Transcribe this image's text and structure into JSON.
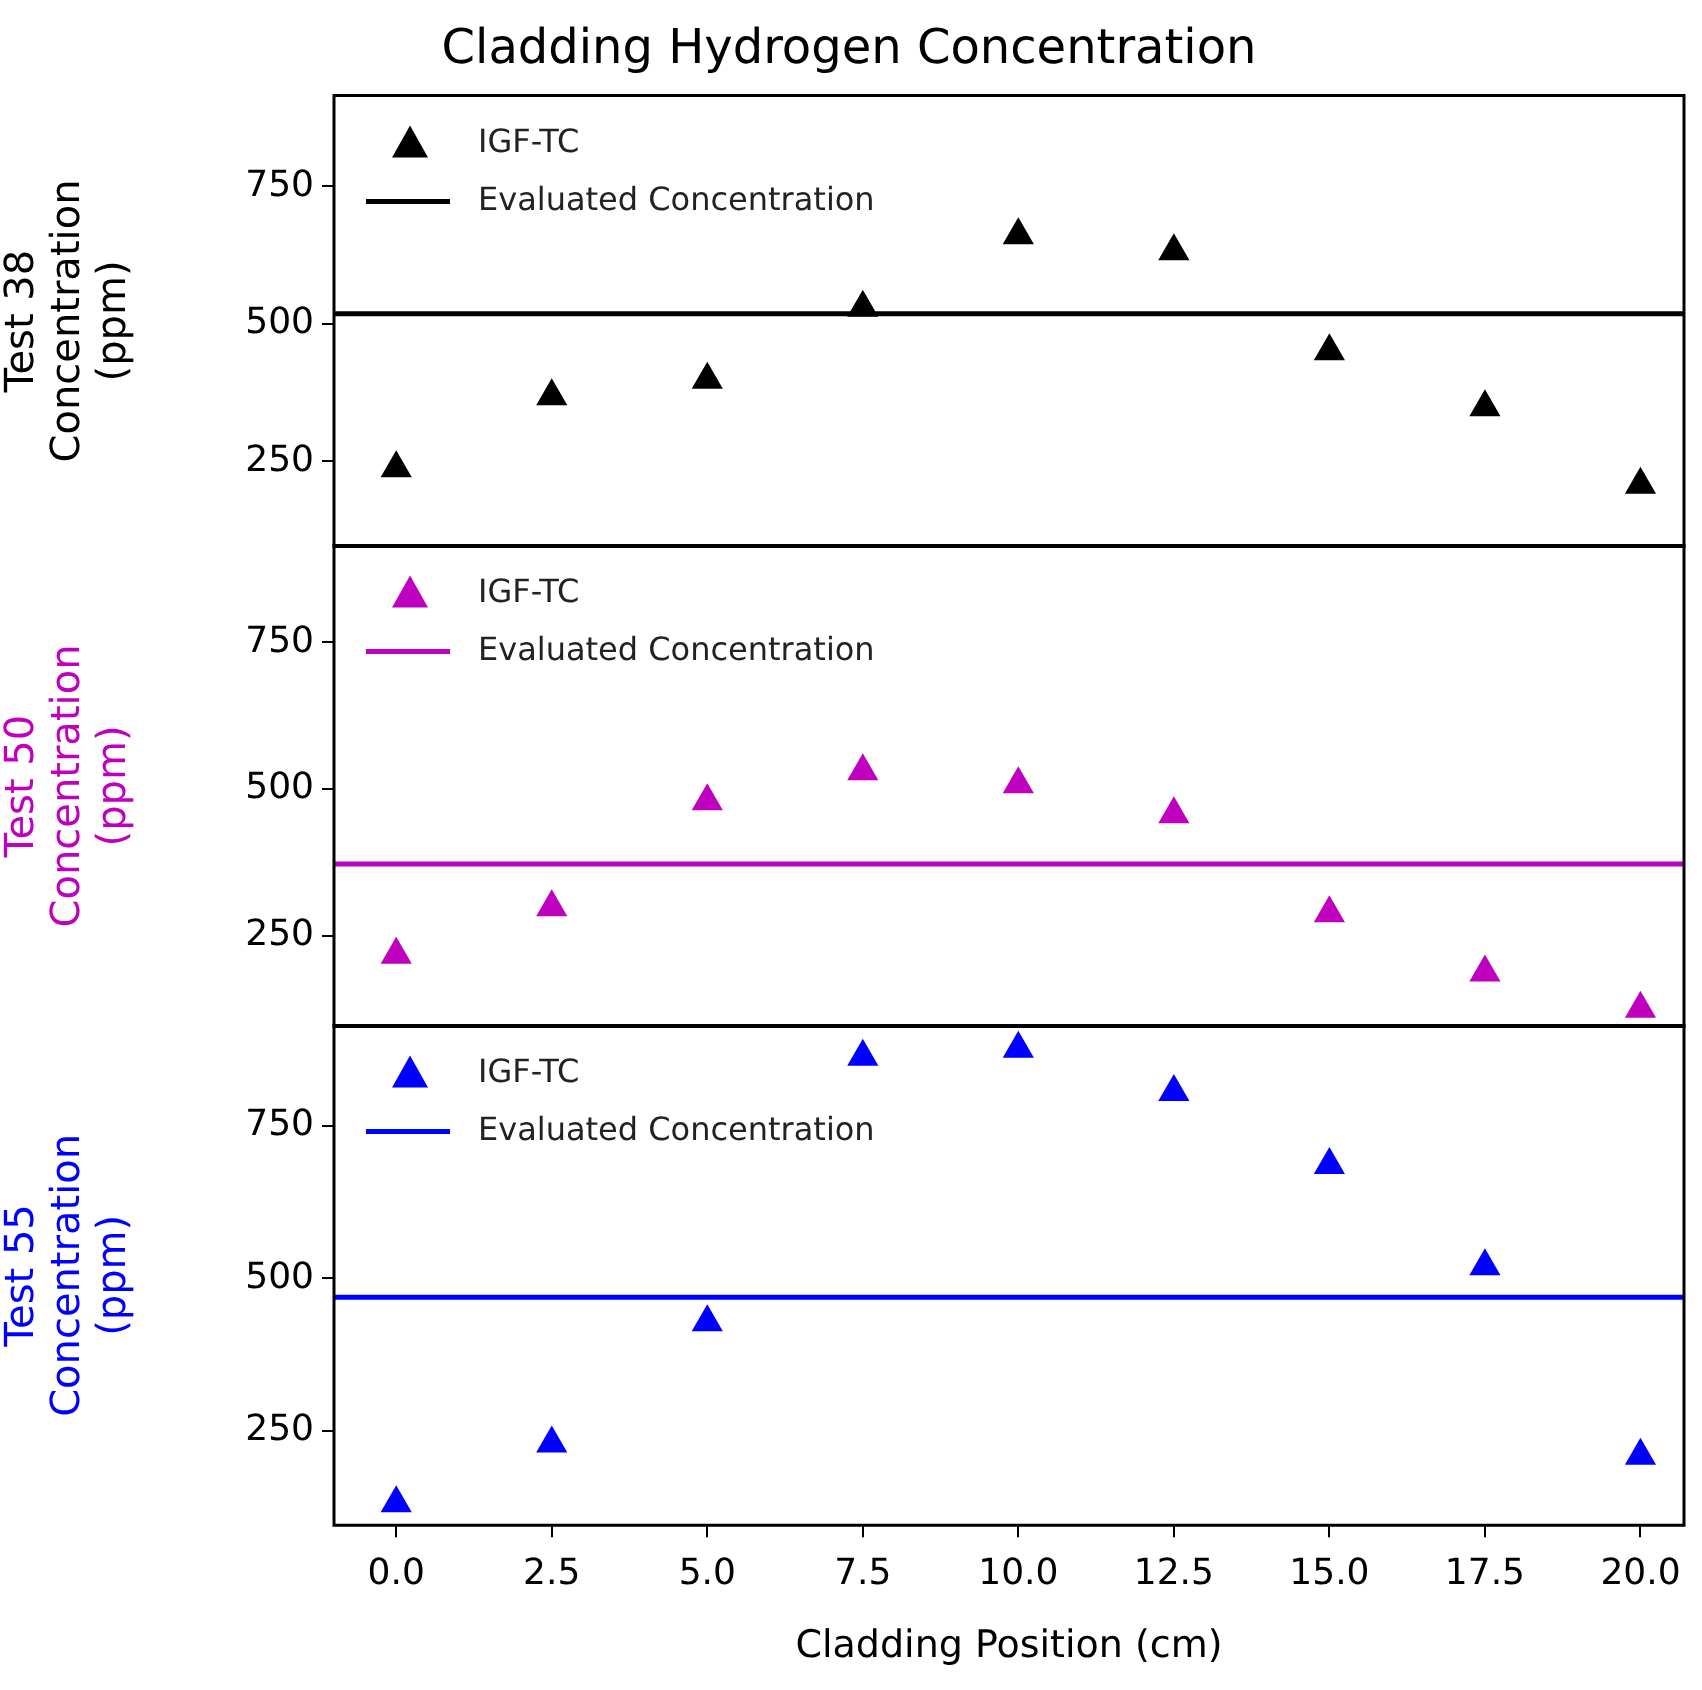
{
  "chart_data": [
    {
      "type": "scatter",
      "title": "Cladding Hydrogen Concentration",
      "ylabel": "Test 38\nConcentration\n(ppm)",
      "x": [
        0,
        2.5,
        5,
        7.5,
        10,
        12.5,
        15,
        17.5,
        20
      ],
      "xlim": [
        -1,
        20.7
      ],
      "ylim": [
        95,
        915
      ],
      "yticks": [
        250,
        500,
        750
      ],
      "tick_labels": "y",
      "grid": false,
      "legend": "top left",
      "marker": "triangle",
      "series": [
        {
          "name": "IGF-TC",
          "color": "#000000",
          "values": [
            237,
            368,
            398,
            529,
            661,
            632,
            450,
            348,
            207
          ]
        }
      ],
      "ref_lines": [
        {
          "axis": "y",
          "value": 518,
          "label": "Evaluated Concentration",
          "color": "#000000"
        }
      ]
    },
    {
      "type": "scatter",
      "ylabel": "Test 50\nConcentration\n(ppm)",
      "x": [
        0,
        2.5,
        5,
        7.5,
        10,
        12.5,
        15,
        17.5,
        20
      ],
      "xlim": [
        -1,
        20.7
      ],
      "ylim": [
        95,
        915
      ],
      "yticks": [
        250,
        500,
        750
      ],
      "tick_labels": "y",
      "grid": false,
      "legend": "top left",
      "marker": "triangle",
      "series": [
        {
          "name": "IGF-TC",
          "color": "#bf00bf",
          "values": [
            217,
            298,
            479,
            530,
            508,
            457,
            288,
            187,
            125
          ]
        }
      ],
      "ref_lines": [
        {
          "axis": "y",
          "value": 372,
          "label": "Evaluated Concentration",
          "color": "#bf00bf"
        }
      ]
    },
    {
      "type": "scatter",
      "ylabel": "Test 55\nConcentration\n(ppm)",
      "xlabel": "Cladding Position (cm)",
      "x": [
        0,
        2.5,
        5,
        7.5,
        10,
        12.5,
        15,
        17.5,
        20
      ],
      "xlim": [
        -1,
        20.7
      ],
      "xticks": [
        {
          "value": 0,
          "label": "0.0"
        },
        {
          "value": 2.5,
          "label": "2.5"
        },
        {
          "value": 5,
          "label": "5.0"
        },
        {
          "value": 7.5,
          "label": "7.5"
        },
        {
          "value": 10,
          "label": "10.0"
        },
        {
          "value": 12.5,
          "label": "12.5"
        },
        {
          "value": 15,
          "label": "15.0"
        },
        {
          "value": 17.5,
          "label": "17.5"
        },
        {
          "value": 20,
          "label": "20.0"
        }
      ],
      "ylim": [
        95,
        915
      ],
      "yticks": [
        250,
        500,
        750
      ],
      "grid": false,
      "legend": "top left",
      "marker": "triangle",
      "series": [
        {
          "name": "IGF-TC",
          "color": "#0000ff",
          "values": [
            131,
            229,
            428,
            864,
            877,
            806,
            686,
            520,
            209
          ]
        }
      ],
      "ref_lines": [
        {
          "axis": "y",
          "value": 469,
          "label": "Evaluated Concentration",
          "color": "#0000ff"
        }
      ]
    }
  ]
}
